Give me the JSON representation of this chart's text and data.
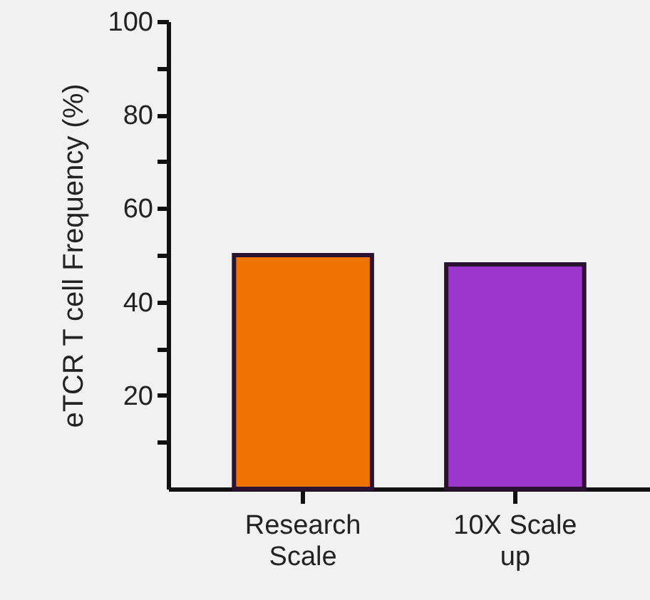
{
  "chart_data": {
    "type": "bar",
    "ylabel": "eTCR T cell Frequency (%)",
    "categories": [
      "Research Scale",
      "10X Scale up"
    ],
    "values": [
      50,
      48
    ],
    "colors": [
      "#ee7300",
      "#9b38cc"
    ],
    "ylim": [
      0,
      100
    ],
    "yticks": [
      {
        "value": 10,
        "label": null
      },
      20,
      {
        "value": 30,
        "label": null
      },
      40,
      {
        "value": 50,
        "label": null
      },
      60,
      {
        "value": 70,
        "label": null
      },
      80,
      {
        "value": 90,
        "label": null
      },
      100
    ],
    "grid": false
  }
}
